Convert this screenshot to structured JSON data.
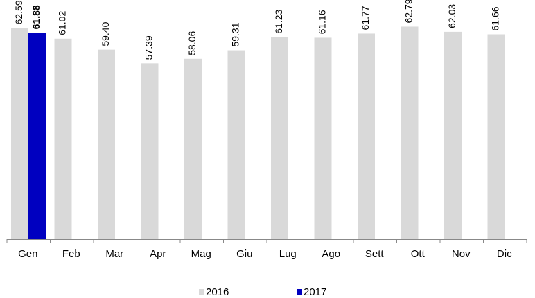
{
  "chart_data": {
    "type": "bar",
    "categories": [
      "Gen",
      "Feb",
      "Mar",
      "Apr",
      "Mag",
      "Giu",
      "Lug",
      "Ago",
      "Sett",
      "Ott",
      "Nov",
      "Dic"
    ],
    "series": [
      {
        "name": "2016",
        "color": "#d9d9d9",
        "values": [
          62.59,
          61.02,
          59.4,
          57.39,
          58.06,
          59.31,
          61.23,
          61.16,
          61.77,
          62.79,
          62.03,
          61.66
        ],
        "value_labels": [
          "62.59",
          "61.02",
          "59.40",
          "57.39",
          "58.06",
          "59.31",
          "61.23",
          "61.16",
          "61.77",
          "62.79",
          "62.03",
          "61.66"
        ]
      },
      {
        "name": "2017",
        "color": "#0000c0",
        "values": [
          61.88,
          null,
          null,
          null,
          null,
          null,
          null,
          null,
          null,
          null,
          null,
          null
        ],
        "value_labels": [
          "61.88",
          null,
          null,
          null,
          null,
          null,
          null,
          null,
          null,
          null,
          null,
          null
        ]
      }
    ],
    "ylim": [
      31.5,
      66
    ]
  }
}
